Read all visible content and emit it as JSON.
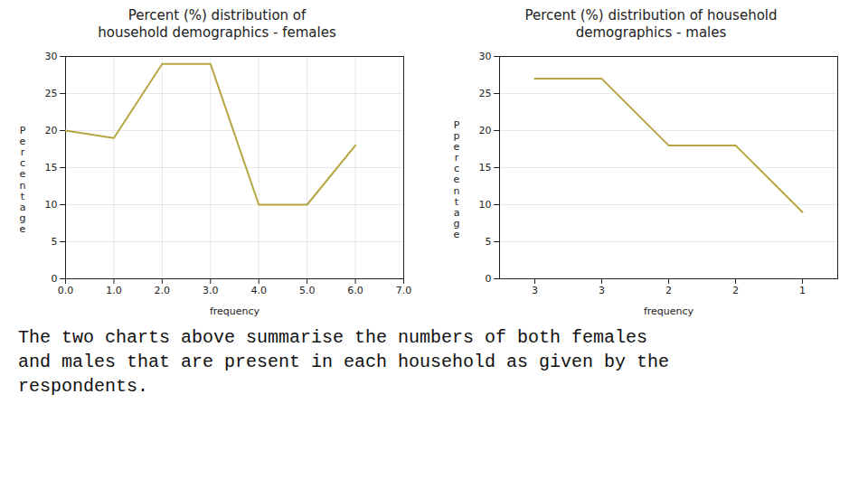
{
  "chart_data": [
    {
      "type": "line",
      "title": "Percent (%) distribution of\nhousehold demographics - females",
      "x": [
        0,
        1,
        2,
        3,
        4,
        5,
        6
      ],
      "values": [
        20,
        19,
        29,
        29,
        10,
        10,
        18
      ],
      "color": "#b5a642",
      "xlabel": "frequency",
      "ylabel": "P\ne\nr\nc\ne\nn\nt\na\ng\ne",
      "xlim": [
        0,
        7
      ],
      "xticks": [
        0,
        1,
        2,
        3,
        4,
        5,
        6,
        7
      ],
      "ylim": [
        0,
        30
      ],
      "yticks": [
        0,
        5,
        10,
        15,
        20,
        25,
        30
      ],
      "grid": true
    },
    {
      "type": "line",
      "title": "Percent (%) distribution of household\ndemographics - males",
      "categories": [
        "3",
        "3",
        "2",
        "2",
        "1"
      ],
      "values": [
        27,
        27,
        18,
        18,
        9
      ],
      "color": "#b5a642",
      "xlabel": "frequency",
      "ylabel": "P\np\ne\nr\nc\ne\nn\nt\na\ng\ne",
      "ylim": [
        0,
        30
      ],
      "yticks": [
        0,
        5,
        10,
        15,
        20,
        25,
        30
      ],
      "grid": "y"
    }
  ],
  "caption": "The two charts above summarise the numbers of both females\nand males that are present in each household as given by the\nrespondents."
}
